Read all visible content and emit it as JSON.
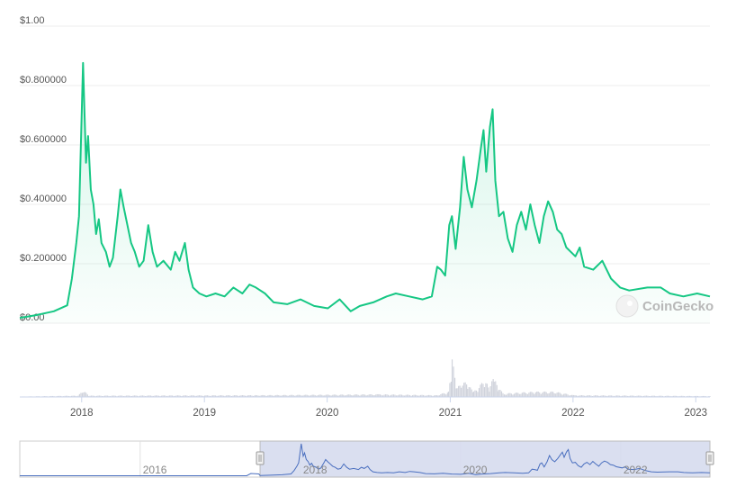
{
  "chart_data": {
    "type": "line",
    "title": "",
    "xlabel": "",
    "ylabel": "",
    "ylim": [
      0,
      1.0
    ],
    "y_ticks": [
      "$0.00",
      "$0.200000",
      "$0.400000",
      "$0.600000",
      "$0.800000",
      "$1.00"
    ],
    "y_tick_values": [
      0,
      0.2,
      0.4,
      0.6,
      0.8,
      1.0
    ],
    "x_ticks": [
      "2018",
      "2019",
      "2020",
      "2021",
      "2022",
      "2023"
    ],
    "xlim": [
      "2017-07-01",
      "2023-02-12"
    ],
    "grid": true,
    "legend": "none",
    "colors": {
      "price_line": "#16c784",
      "volume": "#d0d3dc",
      "navigator_line": "#4a6fbf",
      "navigator_selection": "#d6dcee"
    },
    "series": [
      {
        "dates": [
          "2017-07-01",
          "2017-08-18",
          "2017-10-10",
          "2017-11-19",
          "2017-12-03",
          "2017-12-16",
          "2017-12-24",
          "2018-01-05",
          "2018-01-09",
          "2018-01-14",
          "2018-01-20",
          "2018-01-28",
          "2018-02-05",
          "2018-02-13",
          "2018-02-21",
          "2018-03-01",
          "2018-03-14",
          "2018-03-25",
          "2018-04-04",
          "2018-04-18",
          "2018-04-26",
          "2018-05-06",
          "2018-05-17",
          "2018-05-28",
          "2018-06-08",
          "2018-06-21",
          "2018-07-04",
          "2018-07-18",
          "2018-07-31",
          "2018-08-13",
          "2018-09-01",
          "2018-09-23",
          "2018-10-06",
          "2018-10-19",
          "2018-11-04",
          "2018-11-15",
          "2018-11-28",
          "2018-12-17",
          "2019-01-07",
          "2019-02-03",
          "2019-03-02",
          "2019-03-28",
          "2019-04-24",
          "2019-05-15",
          "2019-06-03",
          "2019-06-30",
          "2019-07-26",
          "2019-09-04",
          "2019-10-14",
          "2019-11-23",
          "2020-01-03",
          "2020-02-07",
          "2020-03-11",
          "2020-04-07",
          "2020-05-17",
          "2020-06-26",
          "2020-07-23",
          "2020-09-01",
          "2020-10-11",
          "2020-11-07",
          "2020-11-23",
          "2020-12-04",
          "2020-12-17",
          "2020-12-29",
          "2021-01-06",
          "2021-01-17",
          "2021-01-30",
          "2021-02-10",
          "2021-02-21",
          "2021-03-06",
          "2021-03-20",
          "2021-04-02",
          "2021-04-10",
          "2021-04-18",
          "2021-04-29",
          "2021-05-07",
          "2021-05-15",
          "2021-05-26",
          "2021-06-08",
          "2021-06-21",
          "2021-07-05",
          "2021-07-18",
          "2021-07-31",
          "2021-08-14",
          "2021-08-27",
          "2021-09-09",
          "2021-09-23",
          "2021-10-06",
          "2021-10-19",
          "2021-11-02",
          "2021-11-15",
          "2021-11-28",
          "2021-12-12",
          "2022-01-08",
          "2022-01-21",
          "2022-02-03",
          "2022-03-02",
          "2022-03-29",
          "2022-04-24",
          "2022-05-21",
          "2022-06-17",
          "2022-08-10",
          "2022-09-19",
          "2022-10-16",
          "2022-11-25",
          "2023-01-05",
          "2023-02-12"
        ],
        "values": [
          0.018,
          0.027,
          0.04,
          0.06,
          0.15,
          0.27,
          0.36,
          0.876,
          0.72,
          0.54,
          0.63,
          0.45,
          0.4,
          0.3,
          0.35,
          0.27,
          0.24,
          0.19,
          0.22,
          0.36,
          0.45,
          0.39,
          0.33,
          0.27,
          0.24,
          0.19,
          0.21,
          0.33,
          0.24,
          0.19,
          0.21,
          0.18,
          0.24,
          0.21,
          0.27,
          0.18,
          0.12,
          0.1,
          0.09,
          0.1,
          0.09,
          0.12,
          0.1,
          0.13,
          0.12,
          0.1,
          0.07,
          0.064,
          0.08,
          0.058,
          0.05,
          0.08,
          0.04,
          0.058,
          0.07,
          0.09,
          0.1,
          0.09,
          0.08,
          0.09,
          0.19,
          0.18,
          0.16,
          0.33,
          0.36,
          0.25,
          0.39,
          0.56,
          0.45,
          0.39,
          0.48,
          0.59,
          0.65,
          0.51,
          0.66,
          0.72,
          0.48,
          0.36,
          0.375,
          0.285,
          0.24,
          0.33,
          0.375,
          0.315,
          0.4,
          0.33,
          0.27,
          0.36,
          0.41,
          0.375,
          0.315,
          0.3,
          0.255,
          0.225,
          0.255,
          0.19,
          0.18,
          0.21,
          0.15,
          0.12,
          0.11,
          0.12,
          0.12,
          0.1,
          0.09,
          0.1,
          0.09
        ]
      }
    ],
    "volume": {
      "dates": [
        "2017-07-01",
        "2017-12-20",
        "2018-01-05",
        "2018-01-20",
        "2019-06-01",
        "2020-06-01",
        "2020-11-20",
        "2020-12-25",
        "2021-01-05",
        "2021-01-20",
        "2021-02-05",
        "2021-02-20",
        "2021-03-10",
        "2021-04-15",
        "2021-04-25",
        "2021-05-10",
        "2021-05-20",
        "2021-06-10",
        "2021-09-10",
        "2021-11-05",
        "2022-01-01",
        "2023-02-12"
      ],
      "values": [
        0.5,
        1.5,
        8,
        1.5,
        2,
        3,
        2,
        6,
        42,
        10,
        18,
        14,
        6,
        20,
        8,
        25,
        10,
        4,
        6,
        6,
        2,
        1
      ]
    },
    "navigator": {
      "x_ticks": [
        "2016",
        "2018",
        "2020",
        "2022"
      ],
      "range_start": "2014-07-01",
      "selection": [
        "2017-07-01",
        "2023-02-12"
      ]
    },
    "watermark": "CoinGecko"
  }
}
